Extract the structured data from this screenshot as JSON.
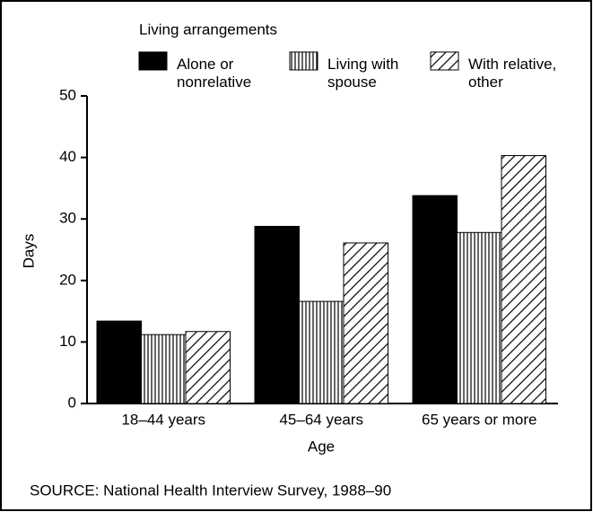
{
  "chart_data": {
    "type": "bar",
    "legend_title": "Living arrangements",
    "categories": [
      "18–44 years",
      "45–64 years",
      "65 years or more"
    ],
    "series": [
      {
        "name": "Alone or nonrelative",
        "color": "#000000",
        "hatch": "solid",
        "values": [
          13.4,
          28.8,
          33.8
        ]
      },
      {
        "name": "Living with spouse",
        "color": "#000000",
        "hatch": "vertical",
        "values": [
          11.2,
          16.6,
          27.8
        ]
      },
      {
        "name": "With relative, other",
        "color": "#000000",
        "hatch": "diagonal",
        "values": [
          11.7,
          26.1,
          40.3
        ]
      }
    ],
    "xlabel": "Age",
    "ylabel": "Days",
    "ylim": [
      0,
      50
    ],
    "yticks": [
      0,
      10,
      20,
      30,
      40,
      50
    ],
    "grid": false,
    "source": "SOURCE: National Health Interview Survey, 1988–90"
  }
}
